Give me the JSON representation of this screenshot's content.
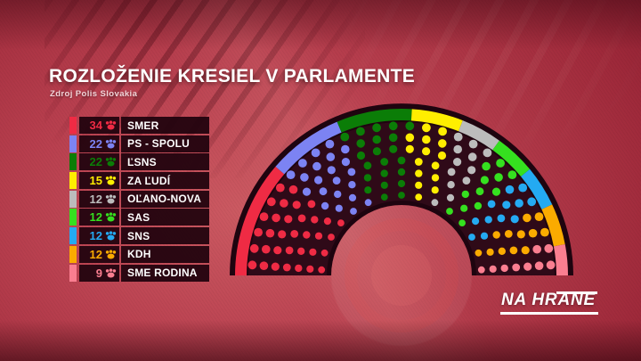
{
  "header": {
    "title": "ROZLOŽENIE KRESIEL V PARLAMENTE",
    "source": "Zdroj Polis Slovakia"
  },
  "logo": {
    "part1": "NA HR",
    "part2": "ANE"
  },
  "icons": {
    "legend_seat_icon": "paw-icon"
  },
  "colors": {
    "background_accent": "#a02a3b",
    "panel_dark": "#21030e",
    "hemicycle_base": "#1e040f",
    "hemicycle_field": "#2f0a18"
  },
  "chart_data": {
    "type": "parliament-hemicycle",
    "title": "ROZLOŽENIE KRESIEL V PARLAMENTE",
    "source": "Zdroj Polis Slovakia",
    "total_seats": 150,
    "legend_position": "left",
    "series": [
      {
        "name": "SMER",
        "seats": 34,
        "color": "#ef2b44"
      },
      {
        "name": "PS - SPOLU",
        "seats": 22,
        "color": "#7c83f3"
      },
      {
        "name": "ĽSNS",
        "seats": 22,
        "color": "#0b7d07"
      },
      {
        "name": "ZA ĽUDÍ",
        "seats": 15,
        "color": "#ffee00"
      },
      {
        "name": "OĽANO-NOVA",
        "seats": 12,
        "color": "#bcbcbc"
      },
      {
        "name": "SAS",
        "seats": 12,
        "color": "#35e01f"
      },
      {
        "name": "SNS",
        "seats": 12,
        "color": "#24aaf2"
      },
      {
        "name": "KDH",
        "seats": 12,
        "color": "#fbab00"
      },
      {
        "name": "SME RODINA",
        "seats": 9,
        "color": "#fa7e90"
      }
    ],
    "layout_hint": {
      "rows": 7,
      "start_angle_deg": 176,
      "end_angle_deg": 4,
      "rim": "proportional-arc"
    }
  }
}
